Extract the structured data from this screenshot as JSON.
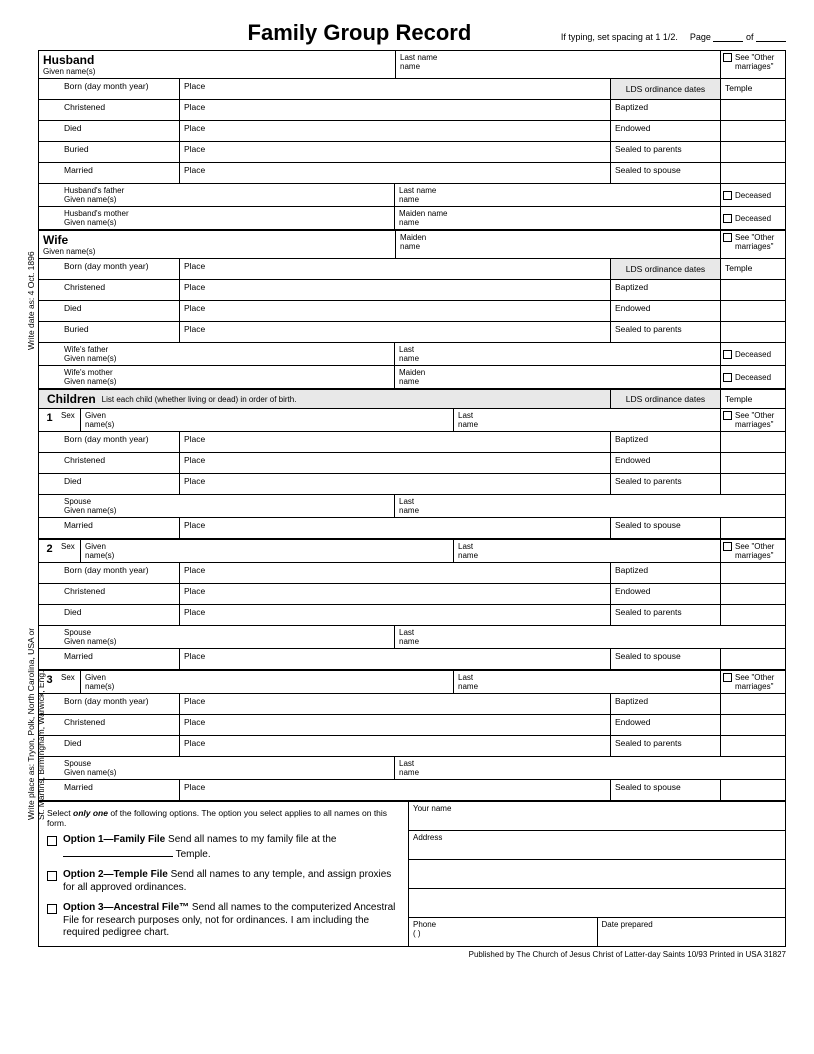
{
  "title": "Family Group Record",
  "typing_note": "If typing, set spacing at 1 1/2.",
  "page_label": "Page",
  "of_label": "of",
  "husband": {
    "heading": "Husband",
    "given": "Given name(s)",
    "last": "Last name",
    "see_other": "See \"Other marriages\""
  },
  "wife": {
    "heading": "Wife",
    "given": "Given name(s)",
    "maiden": "Maiden name",
    "see_other": "See \"Other marriages\""
  },
  "labels": {
    "born": "Born (day month year)",
    "christened": "Christened",
    "died": "Died",
    "buried": "Buried",
    "married": "Married",
    "place": "Place",
    "lds_ord": "LDS ordinance dates",
    "temple": "Temple",
    "baptized": "Baptized",
    "endowed": "Endowed",
    "sealed_parents": "Sealed to parents",
    "sealed_spouse": "Sealed to spouse",
    "last_name": "Last name",
    "maiden_name": "Maiden name",
    "deceased": "Deceased",
    "h_father": "Husband's father",
    "h_mother": "Husband's mother",
    "w_father": "Wife's father",
    "w_mother": "Wife's mother",
    "given_names": "Given name(s)",
    "spouse": "Spouse",
    "sex": "Sex",
    "given": "Given",
    "names": "name(s)"
  },
  "children": {
    "heading": "Children",
    "instruction": "List each child (whether living or dead) in order of birth.",
    "numbers": [
      "1",
      "2",
      "3"
    ]
  },
  "bottom": {
    "intro_a": "Select ",
    "intro_b": "only one",
    "intro_c": " of the following options. The option you select applies to all names on this form.",
    "opt1_title": "Option 1—Family File",
    "opt1_text_a": "  Send all names to my family file at the ",
    "opt1_text_b": " Temple.",
    "opt2_title": "Option 2—Temple File",
    "opt2_text": "  Send all names to any temple, and assign proxies for all approved ordinances.",
    "opt3_title": "Option 3—Ancestral File™",
    "opt3_text": "  Send all names to the computerized Ancestral File for research purposes only, not for ordinances. I am including the required pedigree chart.",
    "your_name": "Your name",
    "address": "Address",
    "phone": "Phone",
    "phone_paren": "(        )",
    "date_prepared": "Date prepared"
  },
  "footer": "Published by The Church of Jesus Christ of Latter-day Saints   10/93   Printed in USA   31827",
  "side": {
    "date_example": "Write date as:  4 Oct. 1896",
    "place_example_a": "Write place as:  Tryon, Polk, North Carolina, USA or",
    "place_example_b": "St. Martins, Birmingham, Warwick, Eng."
  }
}
